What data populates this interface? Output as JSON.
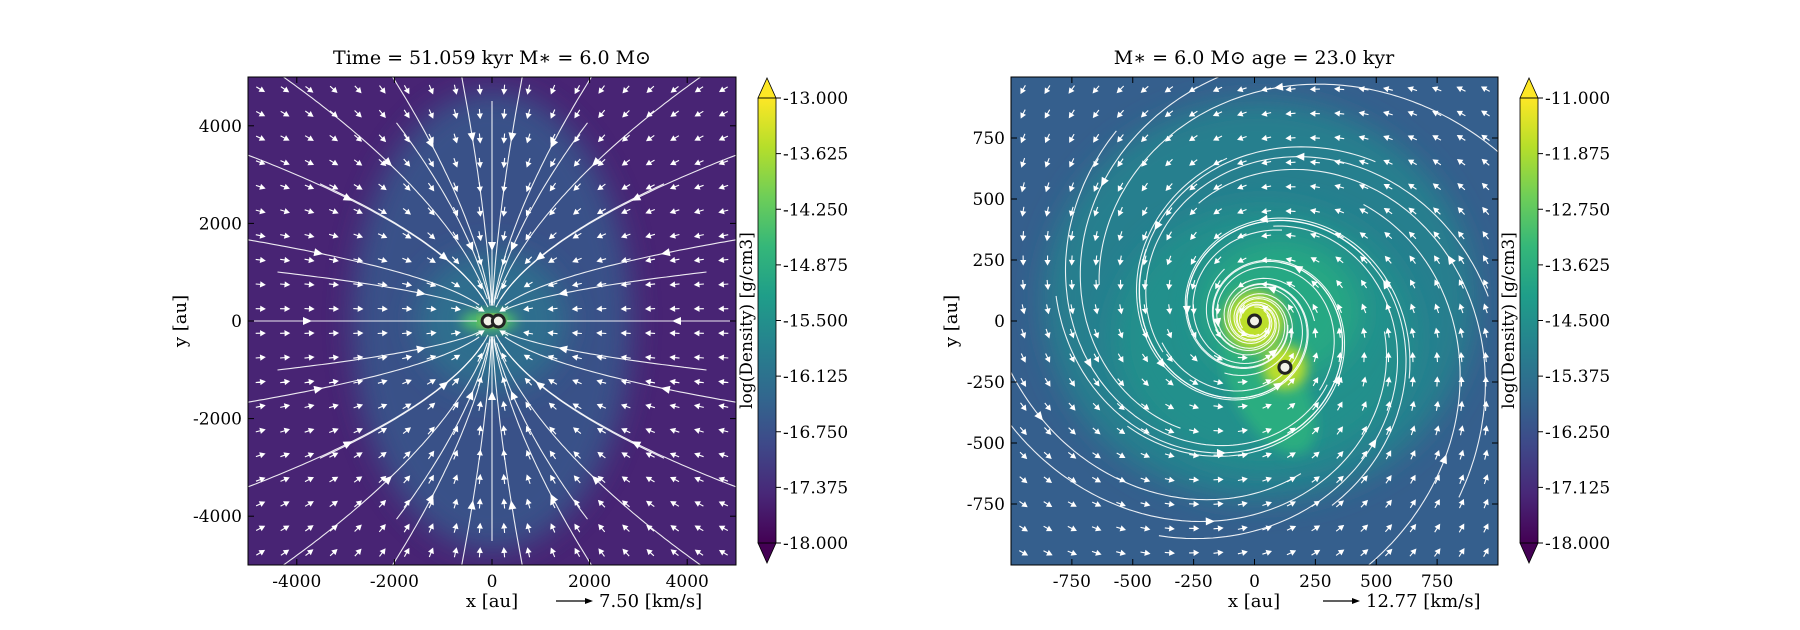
{
  "figure": {
    "background": "#ffffff",
    "colormap": [
      "#440154",
      "#482878",
      "#3e4989",
      "#31688e",
      "#26828e",
      "#1f9e89",
      "#35b779",
      "#6ece58",
      "#b5de2b",
      "#fde725"
    ],
    "stream_color": "#ffffff",
    "sink_fill": "#f2f2e8",
    "sink_ring": "#222222"
  },
  "chart_data": [
    {
      "type": "heatmap",
      "title": "Time = 51.059 kyr    M$_*$ = 6.0 M$_\\odot$",
      "title_display": "Time = 51.059 kyr    M∗ = 6.0 M⊙",
      "xlabel": "x [au]",
      "ylabel": "y [au]",
      "xlim": [
        -5000,
        5000
      ],
      "ylim": [
        -5000,
        5000
      ],
      "xticks": [
        -4000,
        -2000,
        0,
        2000,
        4000
      ],
      "xtick_labels": [
        "-4000",
        "-2000",
        "0",
        "2000",
        "4000"
      ],
      "yticks": [
        -4000,
        -2000,
        0,
        2000,
        4000
      ],
      "ytick_labels": [
        "-4000",
        "-2000",
        "0",
        "2000",
        "4000"
      ],
      "velocity_key": "7.50 [km/s]",
      "field": "infall",
      "background_level": 0.1,
      "sinks": [
        {
          "x": -80,
          "y": 0
        },
        {
          "x": 130,
          "y": 0
        }
      ],
      "colorbar": {
        "label": "log(Density) [g/cm3]",
        "range": [
          -18.0,
          -13.0
        ],
        "ticks": [
          "-13.000",
          "-13.625",
          "-14.250",
          "-14.875",
          "-15.500",
          "-16.125",
          "-16.750",
          "-17.375",
          "-18.000"
        ]
      }
    },
    {
      "type": "heatmap",
      "title": "M$_*$ = 6.0 M$_\\odot$          age = 23.0 kyr",
      "title_display": "M∗ = 6.0 M⊙          age = 23.0 kyr",
      "xlabel": "x [au]",
      "ylabel": "y [au]",
      "xlim": [
        -1000,
        1000
      ],
      "ylim": [
        -1000,
        1000
      ],
      "xticks": [
        -750,
        -500,
        -250,
        0,
        250,
        500,
        750
      ],
      "xtick_labels": [
        "-750",
        "-500",
        "-250",
        "0",
        "250",
        "500",
        "750"
      ],
      "yticks": [
        750,
        500,
        250,
        0,
        -250,
        -500,
        -750
      ],
      "ytick_labels": [
        "750",
        "500",
        "250",
        "0",
        "-250",
        "-500",
        "-750"
      ],
      "velocity_key": "12.77 [km/s]",
      "field": "rotation",
      "background_level": 0.3,
      "sinks": [
        {
          "x": 0,
          "y": 0
        },
        {
          "x": 125,
          "y": -190
        }
      ],
      "colorbar": {
        "label": "log(Density) [g/cm3]",
        "range": [
          -18.0,
          -11.0
        ],
        "ticks": [
          "-11.000",
          "-11.875",
          "-12.750",
          "-13.625",
          "-14.500",
          "-15.375",
          "-16.250",
          "-17.125",
          "-18.000"
        ]
      }
    }
  ]
}
